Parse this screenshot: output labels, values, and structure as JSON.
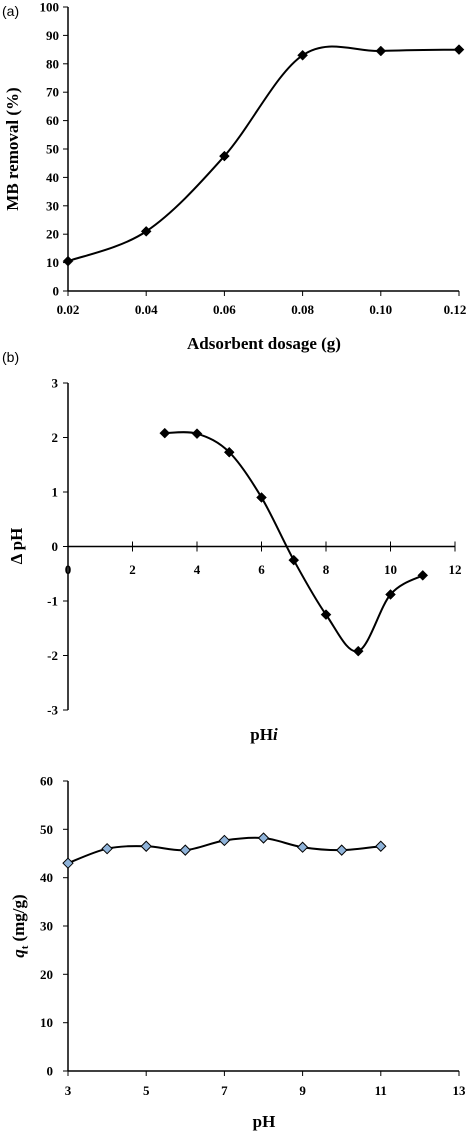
{
  "chart_data": [
    {
      "type": "line",
      "panel_label": "(a)",
      "xlabel": "Adsorbent dosage (g)",
      "ylabel": "MB removal (%)",
      "xlim": [
        0.02,
        0.12
      ],
      "ylim": [
        0,
        100
      ],
      "xticks": [
        "0.02",
        "0.04",
        "0.06",
        "0.08",
        "0.10",
        "0.12"
      ],
      "yticks": [
        "0",
        "10",
        "20",
        "30",
        "40",
        "50",
        "60",
        "70",
        "80",
        "90",
        "100"
      ],
      "grid": false,
      "marker": "diamond",
      "marker_color": "#000000",
      "series": [
        {
          "x": [
            0.02,
            0.04,
            0.06,
            0.08,
            0.1,
            0.12
          ],
          "y": [
            10.5,
            21,
            47.5,
            83,
            84.5,
            85
          ]
        }
      ]
    },
    {
      "type": "line",
      "panel_label": "(b)",
      "xlabel": "pH",
      "xlabel_italic": "i",
      "ylabel": "Δ pH",
      "xlim": [
        0,
        12
      ],
      "ylim": [
        -3,
        3
      ],
      "xticks": [
        "0",
        "2",
        "4",
        "6",
        "8",
        "10",
        "12"
      ],
      "yticks": [
        "-3",
        "-2",
        "-1",
        "0",
        "1",
        "2",
        "3"
      ],
      "grid": false,
      "marker": "diamond",
      "marker_color": "#000000",
      "series": [
        {
          "x": [
            3,
            4,
            5,
            6,
            7,
            8,
            9,
            10,
            11
          ],
          "y": [
            2.08,
            2.07,
            1.73,
            0.9,
            -0.25,
            -1.25,
            -1.92,
            -0.88,
            -0.53
          ]
        }
      ]
    },
    {
      "type": "line",
      "panel_label": "",
      "xlabel": "pH",
      "ylabel_main": "q",
      "ylabel_sub": "t",
      "ylabel_unit": "(mg/g)",
      "xlim": [
        3,
        13
      ],
      "ylim": [
        0,
        60
      ],
      "xticks": [
        "3",
        "5",
        "7",
        "9",
        "11",
        "13"
      ],
      "yticks": [
        "0",
        "10",
        "20",
        "30",
        "40",
        "50",
        "60"
      ],
      "grid": false,
      "marker": "diamond",
      "marker_color": "#8fb3d9",
      "series": [
        {
          "x": [
            3,
            4,
            5,
            6,
            7,
            8,
            9,
            10,
            11
          ],
          "y": [
            43,
            46,
            46.5,
            45.7,
            47.7,
            48.2,
            46.3,
            45.7,
            46.5
          ]
        }
      ]
    }
  ]
}
